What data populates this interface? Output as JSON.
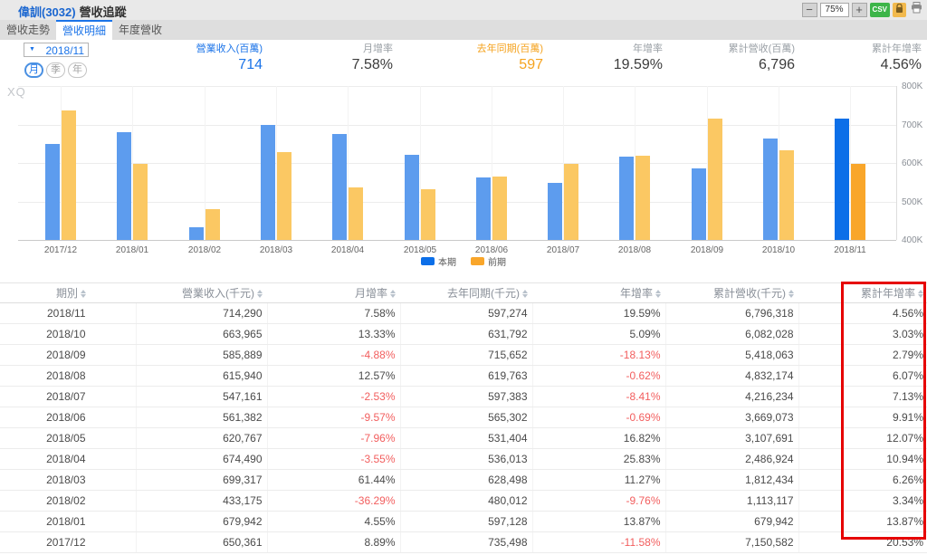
{
  "header": {
    "title_stock": "偉訓(3032)",
    "title_suffix": "營收追蹤",
    "toolbar": {
      "zoom_out": "−",
      "zoom_level": "75%",
      "zoom_in": "+",
      "csv_label": "CSV"
    }
  },
  "tabs": [
    {
      "label": "營收走勢",
      "active": false
    },
    {
      "label": "營收明細",
      "active": true
    },
    {
      "label": "年度營收",
      "active": false
    }
  ],
  "controls": {
    "dropdown_arrow": "▼",
    "date_value": "2018/11",
    "period_buttons": [
      {
        "label": "月",
        "active": true
      },
      {
        "label": "季",
        "active": false
      },
      {
        "label": "年",
        "active": false
      }
    ]
  },
  "stats": [
    {
      "label": "營業收入(百萬)",
      "value": "714",
      "color": "blue"
    },
    {
      "label": "月增率",
      "value": "7.58%",
      "color": "dark"
    },
    {
      "label": "去年同期(百萬)",
      "value": "597",
      "color": "orange"
    },
    {
      "label": "年增率",
      "value": "19.59%",
      "color": "dark"
    },
    {
      "label": "累計營收(百萬)",
      "value": "6,796",
      "color": "dark"
    },
    {
      "label": "累計年增率",
      "value": "4.56%",
      "color": "dark"
    }
  ],
  "chart_data": {
    "type": "bar",
    "watermark": "XQ",
    "categories": [
      "2017/12",
      "2018/01",
      "2018/02",
      "2018/03",
      "2018/04",
      "2018/05",
      "2018/06",
      "2018/07",
      "2018/08",
      "2018/09",
      "2018/10",
      "2018/11"
    ],
    "series": [
      {
        "name": "本期",
        "color": "#5d9cee",
        "selected_color": "#0c6fe8",
        "values": [
          650361,
          679942,
          433175,
          699317,
          674490,
          620767,
          561382,
          547161,
          615940,
          585889,
          663965,
          714290
        ]
      },
      {
        "name": "前期",
        "color": "#fbc863",
        "selected_color": "#f9a62a",
        "values": [
          735498,
          597128,
          480012,
          628498,
          536013,
          531404,
          565302,
          597383,
          619763,
          715652,
          631792,
          597274
        ]
      }
    ],
    "selected_index": 11,
    "ylim": [
      400000,
      800000
    ],
    "y_ticks": [
      "800K",
      "700K",
      "600K",
      "500K",
      "400K"
    ],
    "legend_position": "bottom-center",
    "grid": true,
    "unit": "千元"
  },
  "table": {
    "columns": [
      "期別",
      "營業收入(千元)",
      "月增率",
      "去年同期(千元)",
      "年增率",
      "累計營收(千元)",
      "累計年增率"
    ],
    "rows": [
      [
        "2018/11",
        "714,290",
        "7.58%",
        "597,274",
        "19.59%",
        "6,796,318",
        "4.56%"
      ],
      [
        "2018/10",
        "663,965",
        "13.33%",
        "631,792",
        "5.09%",
        "6,082,028",
        "3.03%"
      ],
      [
        "2018/09",
        "585,889",
        "-4.88%",
        "715,652",
        "-18.13%",
        "5,418,063",
        "2.79%"
      ],
      [
        "2018/08",
        "615,940",
        "12.57%",
        "619,763",
        "-0.62%",
        "4,832,174",
        "6.07%"
      ],
      [
        "2018/07",
        "547,161",
        "-2.53%",
        "597,383",
        "-8.41%",
        "4,216,234",
        "7.13%"
      ],
      [
        "2018/06",
        "561,382",
        "-9.57%",
        "565,302",
        "-0.69%",
        "3,669,073",
        "9.91%"
      ],
      [
        "2018/05",
        "620,767",
        "-7.96%",
        "531,404",
        "16.82%",
        "3,107,691",
        "12.07%"
      ],
      [
        "2018/04",
        "674,490",
        "-3.55%",
        "536,013",
        "25.83%",
        "2,486,924",
        "10.94%"
      ],
      [
        "2018/03",
        "699,317",
        "61.44%",
        "628,498",
        "11.27%",
        "1,812,434",
        "6.26%"
      ],
      [
        "2018/02",
        "433,175",
        "-36.29%",
        "480,012",
        "-9.76%",
        "1,113,117",
        "3.34%"
      ],
      [
        "2018/01",
        "679,942",
        "4.55%",
        "597,128",
        "13.87%",
        "679,942",
        "13.87%"
      ],
      [
        "2017/12",
        "650,361",
        "8.89%",
        "735,498",
        "-11.58%",
        "7,150,582",
        "20.53%"
      ]
    ],
    "highlight_column_index": 6,
    "highlight_color": "#e60000",
    "negative_color": "#f25e5e"
  }
}
